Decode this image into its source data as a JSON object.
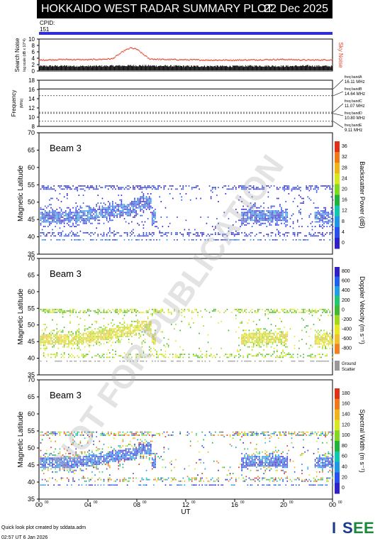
{
  "header": {
    "title": "HOKKAIDO WEST RADAR SUMMARY PLOT",
    "date": "22 Dec 2025",
    "cpid_label": "CPID:",
    "cpid_value": "151"
  },
  "colors": {
    "cpid_bar": "#2a2af0",
    "noise_search": "#000000",
    "noise_sky": "#e0452a",
    "watermark": "#b0b0b0"
  },
  "watermark": "NOT FOR PUBLICATION",
  "footer": {
    "line1": "Quick look plot created by sddata.adm",
    "line2": "02:57 UT  6 Jan 2026",
    "logo": "ISEE"
  },
  "chart_data": [
    {
      "type": "line",
      "name": "noise-panel",
      "ylabel": "Search Noise",
      "ylabel_sub": "log scale (dB x 10^4)",
      "right_label": "Sky Noise",
      "yticks": [
        0,
        2,
        4,
        6,
        8,
        10
      ],
      "ylim": [
        0,
        10
      ],
      "xlim": [
        0,
        24
      ],
      "series": [
        {
          "name": "Search Noise",
          "x": [
            0,
            2,
            4,
            6,
            8,
            10,
            12,
            14,
            16,
            18,
            20,
            22,
            24
          ],
          "values": [
            1.5,
            1.6,
            1.5,
            1.6,
            1.7,
            1.6,
            1.5,
            1.5,
            1.5,
            1.6,
            1.5,
            1.6,
            1.5
          ]
        },
        {
          "name": "Sky Noise",
          "x": [
            0,
            2,
            4,
            6,
            7,
            7.5,
            8,
            9,
            10,
            12,
            14,
            16,
            18,
            20,
            22,
            24
          ],
          "values": [
            3.4,
            3.6,
            3.5,
            3.8,
            6.4,
            7.2,
            6.8,
            3.8,
            3.6,
            3.5,
            3.4,
            3.4,
            3.5,
            3.6,
            3.4,
            3.5
          ]
        }
      ]
    },
    {
      "type": "line",
      "name": "frequency-panel",
      "ylabel": "Frequency",
      "ylabel_sub": "(MHz)",
      "yticks": [
        8,
        10,
        12,
        14,
        16,
        18
      ],
      "ylim": [
        8,
        18
      ],
      "band_lines": [
        16.11,
        14.64,
        11.07,
        10.8,
        9.11
      ],
      "bands": [
        {
          "name": "freq bandA",
          "value": "16.11 MHz"
        },
        {
          "name": "freq bandB",
          "value": "14.64 MHz"
        },
        {
          "name": "freq bandC",
          "value": "11.07 MHz"
        },
        {
          "name": "freq bandD",
          "value": "10.80 MHz"
        },
        {
          "name": "freq bandE",
          "value": "9.11 MHz"
        }
      ]
    },
    {
      "type": "heatmap",
      "name": "power-panel",
      "beam_label": "Beam  3",
      "ylabel": "Magnetic Latitude",
      "yticks": [
        35,
        40,
        45,
        50,
        55,
        60,
        65,
        70
      ],
      "ylim": [
        35,
        70
      ],
      "colorbar_label": "Backscatter Power (dB)",
      "colorbar_ticks": [
        "0",
        "4",
        "8",
        "12",
        "16",
        "20",
        "24",
        "28",
        "32",
        "36"
      ]
    },
    {
      "type": "heatmap",
      "name": "velocity-panel",
      "beam_label": "Beam  3",
      "ylabel": "Magnetic Latitude",
      "yticks": [
        35,
        40,
        45,
        50,
        55,
        60,
        65,
        70
      ],
      "ylim": [
        35,
        70
      ],
      "colorbar_label": "Doppler Velocity (m s⁻¹)",
      "colorbar_ticks": [
        "800",
        "600",
        "400",
        "200",
        "0",
        "-200",
        "-400",
        "-600",
        "-800"
      ],
      "ground_scatter_label": "Ground Scatter"
    },
    {
      "type": "heatmap",
      "name": "width-panel",
      "beam_label": "Beam  3",
      "ylabel": "Magnetic Latitude",
      "yticks": [
        35,
        40,
        45,
        50,
        55,
        60,
        65,
        70
      ],
      "ylim": [
        35,
        70
      ],
      "colorbar_label": "Spectral Width (m s⁻¹)",
      "colorbar_ticks": [
        "0",
        "20",
        "40",
        "60",
        "80",
        "100",
        "120",
        "140",
        "160",
        "180"
      ],
      "xticks": [
        "00",
        "04",
        "08",
        "12",
        "16",
        "20",
        "00"
      ],
      "xtick_superscript": "00",
      "xlabel": "UT"
    }
  ]
}
